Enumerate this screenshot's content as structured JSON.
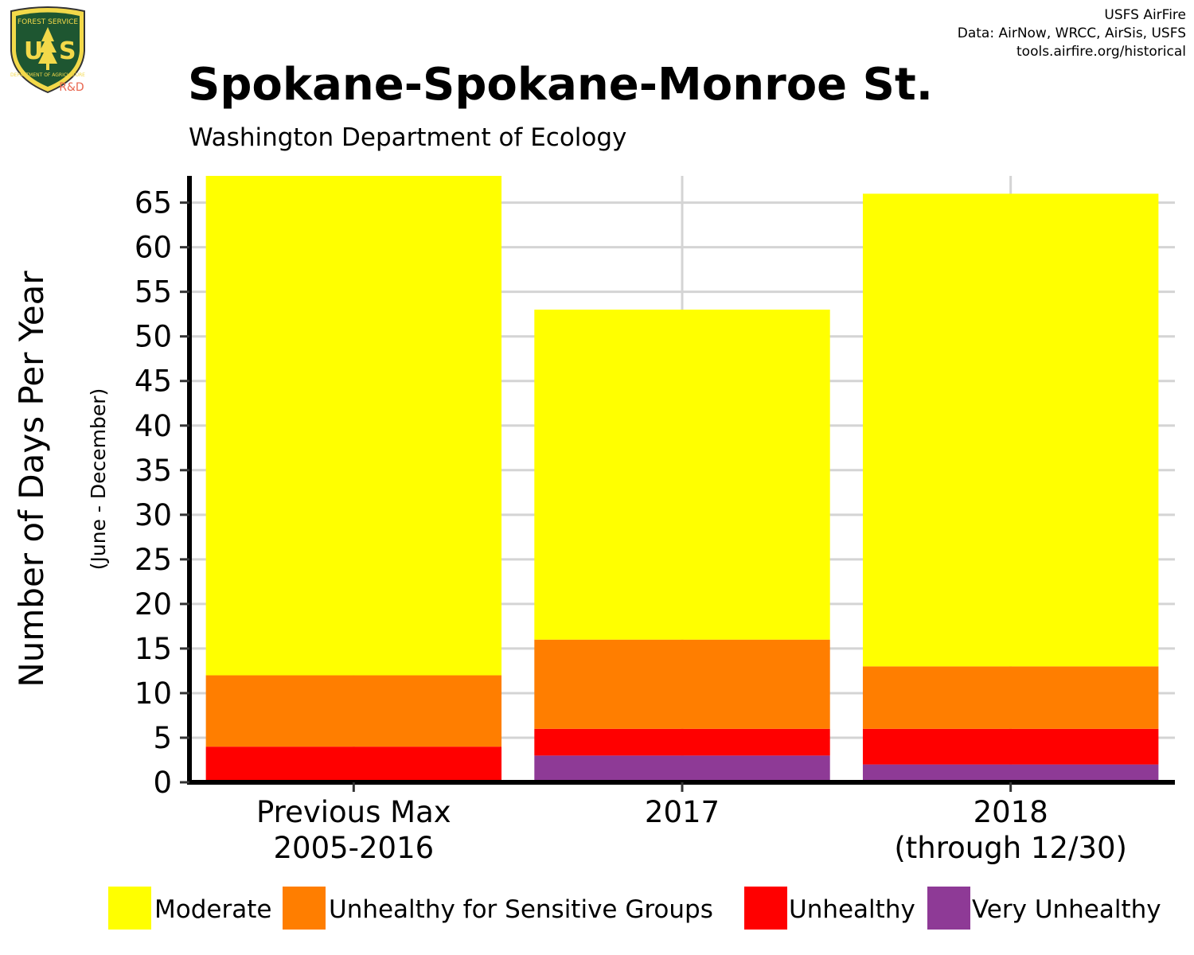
{
  "header": {
    "logo_top_text": "FOREST SERVICE",
    "logo_letters": "USFS",
    "logo_bottom_text": "DEPARTMENT OF AGRICULTURE",
    "logo_badge": "R&D",
    "credit_line1": "USFS AirFire",
    "credit_line2": "Data: AirNow, WRCC, AirSis, USFS",
    "credit_line3": "tools.airfire.org/historical"
  },
  "chart_data": {
    "type": "bar",
    "stacked": true,
    "title": "Spokane-Spokane-Monroe St.",
    "subtitle": "Washington Department of Ecology",
    "ylabel": "Number of Days Per Year",
    "ylabel_sub": "(June - December)",
    "xlabel": "",
    "ylim": [
      0,
      68
    ],
    "yticks": [
      0,
      5,
      10,
      15,
      20,
      25,
      30,
      35,
      40,
      45,
      50,
      55,
      60,
      65
    ],
    "grid": true,
    "legend_position": "bottom",
    "categories": [
      [
        "Previous Max",
        "2005-2016"
      ],
      [
        "2017"
      ],
      [
        "2018",
        "(through 12/30)"
      ]
    ],
    "series": [
      {
        "name": "Very Unhealthy",
        "color": "#8E3A96",
        "values": [
          0,
          3,
          2
        ]
      },
      {
        "name": "Unhealthy",
        "color": "#FF0000",
        "values": [
          4,
          3,
          4
        ]
      },
      {
        "name": "Unhealthy for Sensitive Groups",
        "color": "#FF7E00",
        "values": [
          8,
          10,
          7
        ]
      },
      {
        "name": "Moderate",
        "color": "#FFFF00",
        "values": [
          56,
          37,
          53
        ]
      }
    ],
    "legend_order": [
      "Moderate",
      "Unhealthy for Sensitive Groups",
      "Unhealthy",
      "Very Unhealthy"
    ]
  }
}
